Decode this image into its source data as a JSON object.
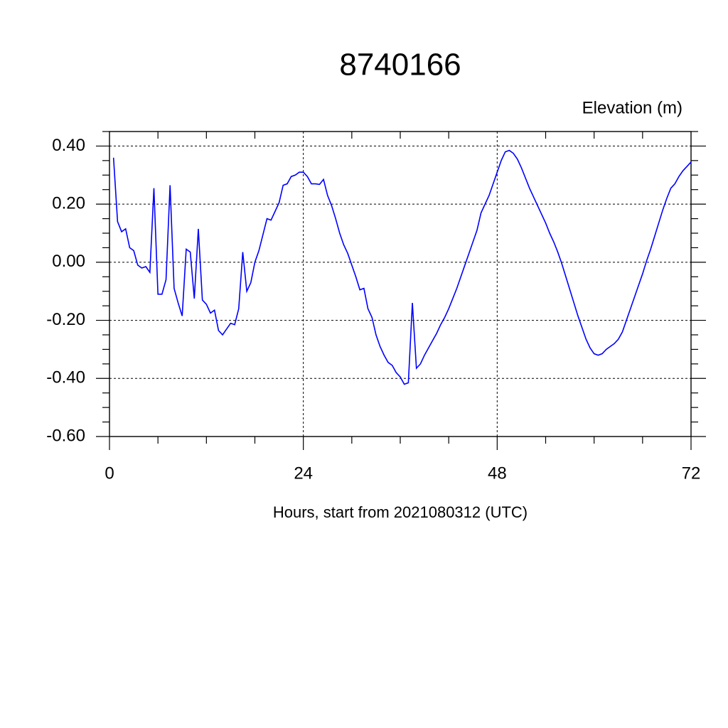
{
  "chart_data": {
    "type": "line",
    "title": "8740166",
    "y_label": "Elevation (m)",
    "x_label": "Hours, start from 2021080312 (UTC)",
    "xlim": [
      0,
      72
    ],
    "ylim": [
      -0.6,
      0.45
    ],
    "xticks": [
      0,
      24,
      48,
      72
    ],
    "xminorticks": [
      6,
      12,
      18,
      30,
      36,
      42,
      54,
      60,
      66
    ],
    "yticks": [
      {
        "value": -0.6,
        "label": "-0.60"
      },
      {
        "value": -0.4,
        "label": "-0.40"
      },
      {
        "value": -0.2,
        "label": "-0.20"
      },
      {
        "value": 0,
        "label": "0.00"
      },
      {
        "value": 0.2,
        "label": "0.20"
      },
      {
        "value": 0.4,
        "label": "0.40"
      }
    ],
    "yminorticks": [
      -0.55,
      -0.5,
      -0.45,
      -0.35,
      -0.3,
      -0.25,
      -0.15,
      -0.1,
      -0.05,
      0.05,
      0.1,
      0.15,
      0.25,
      0.3,
      0.35,
      0.45
    ],
    "grid": true,
    "x": [
      0.5,
      1,
      1.5,
      2,
      2.5,
      3,
      3.5,
      4,
      4.5,
      5,
      5.5,
      6,
      6.5,
      7,
      7.5,
      8,
      8.5,
      9,
      9.5,
      10,
      10.5,
      11,
      11.5,
      12,
      12.5,
      13,
      13.5,
      14,
      14.5,
      15,
      15.5,
      16,
      16.5,
      17,
      17.5,
      18,
      18.5,
      19,
      19.5,
      20,
      20.5,
      21,
      21.5,
      22,
      22.5,
      23,
      23.5,
      24,
      24.5,
      25,
      25.5,
      26,
      26.5,
      27,
      27.5,
      28,
      28.5,
      29,
      29.5,
      30,
      30.5,
      31,
      31.5,
      32,
      32.5,
      33,
      33.5,
      34,
      34.5,
      35,
      35.5,
      36,
      36.5,
      37,
      37.5,
      38,
      38.5,
      39,
      39.5,
      40,
      40.5,
      41,
      41.5,
      42,
      42.5,
      43,
      43.5,
      44,
      44.5,
      45,
      45.5,
      46,
      46.5,
      47,
      47.5,
      48,
      48.5,
      49,
      49.5,
      50,
      50.5,
      51,
      51.5,
      52,
      52.5,
      53,
      53.5,
      54,
      54.5,
      55,
      55.5,
      56,
      56.5,
      57,
      57.5,
      58,
      58.5,
      59,
      59.5,
      60,
      60.5,
      61,
      61.5,
      62,
      62.5,
      63,
      63.5,
      64,
      64.5,
      65,
      65.5,
      66,
      66.5,
      67,
      67.5,
      68,
      68.5,
      69,
      69.5,
      70,
      70.5,
      71,
      71.5,
      72
    ],
    "series": [
      {
        "color": "#0000ff",
        "values": [
          0.36,
          0.14,
          0.105,
          0.115,
          0.05,
          0.04,
          -0.01,
          -0.02,
          -0.015,
          -0.035,
          0.255,
          -0.11,
          -0.11,
          -0.06,
          0.265,
          -0.09,
          -0.14,
          -0.185,
          0.045,
          0.035,
          -0.125,
          0.115,
          -0.13,
          -0.145,
          -0.175,
          -0.165,
          -0.235,
          -0.25,
          -0.23,
          -0.21,
          -0.215,
          -0.16,
          0.035,
          -0.1,
          -0.07,
          0,
          0.04,
          0.095,
          0.15,
          0.145,
          0.175,
          0.205,
          0.265,
          0.27,
          0.295,
          0.3,
          0.31,
          0.31,
          0.295,
          0.27,
          0.27,
          0.268,
          0.285,
          0.23,
          0.195,
          0.15,
          0.1,
          0.06,
          0.03,
          -0.01,
          -0.05,
          -0.095,
          -0.09,
          -0.16,
          -0.19,
          -0.25,
          -0.29,
          -0.32,
          -0.345,
          -0.355,
          -0.38,
          -0.395,
          -0.42,
          -0.415,
          -0.14,
          -0.365,
          -0.35,
          -0.32,
          -0.295,
          -0.27,
          -0.245,
          -0.215,
          -0.19,
          -0.16,
          -0.125,
          -0.09,
          -0.05,
          -0.01,
          0.03,
          0.07,
          0.11,
          0.17,
          0.2,
          0.23,
          0.27,
          0.31,
          0.35,
          0.38,
          0.385,
          0.375,
          0.355,
          0.325,
          0.29,
          0.255,
          0.225,
          0.195,
          0.165,
          0.135,
          0.1,
          0.07,
          0.035,
          -0.005,
          -0.05,
          -0.095,
          -0.14,
          -0.185,
          -0.225,
          -0.265,
          -0.295,
          -0.315,
          -0.32,
          -0.315,
          -0.3,
          -0.29,
          -0.28,
          -0.265,
          -0.24,
          -0.2,
          -0.16,
          -0.12,
          -0.08,
          -0.04,
          0.005,
          0.045,
          0.09,
          0.135,
          0.18,
          0.22,
          0.255,
          0.27,
          0.295,
          0.315,
          0.33,
          0.345
        ]
      }
    ]
  }
}
